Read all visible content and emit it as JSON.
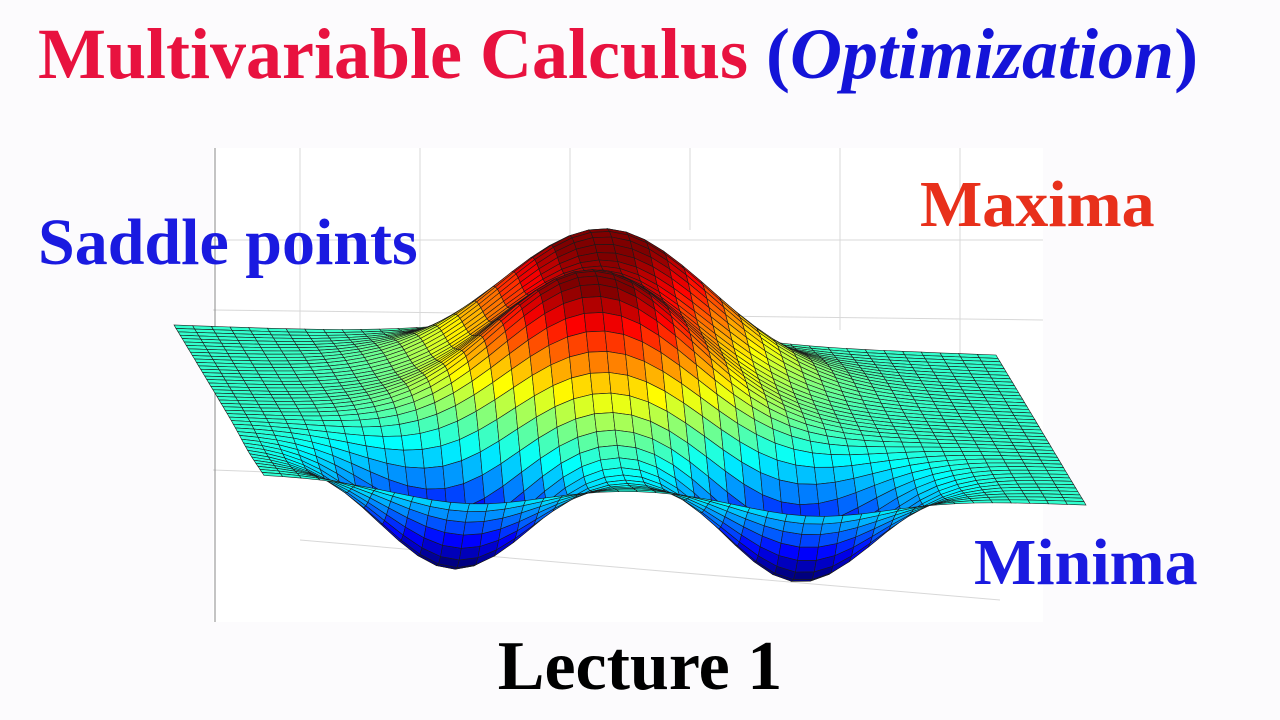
{
  "title": {
    "main": "Multivariable Calculus",
    "open": "(",
    "note": "Optimization",
    "close": ")"
  },
  "labels": {
    "saddle": "Saddle points",
    "maxima": "Maxima",
    "minima": "Minima"
  },
  "footer": "Lecture 1"
}
